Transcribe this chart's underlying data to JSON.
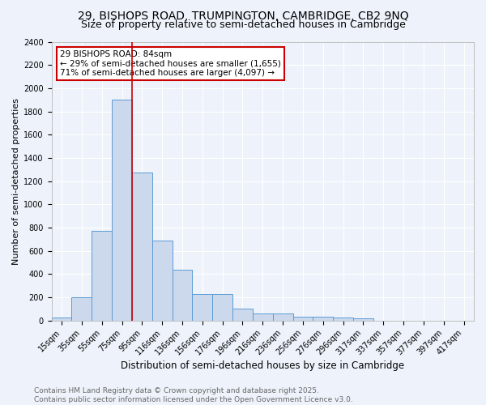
{
  "title1": "29, BISHOPS ROAD, TRUMPINGTON, CAMBRIDGE, CB2 9NQ",
  "title2": "Size of property relative to semi-detached houses in Cambridge",
  "xlabel": "Distribution of semi-detached houses by size in Cambridge",
  "ylabel": "Number of semi-detached properties",
  "bar_labels": [
    "15sqm",
    "35sqm",
    "55sqm",
    "75sqm",
    "95sqm",
    "116sqm",
    "136sqm",
    "156sqm",
    "176sqm",
    "196sqm",
    "216sqm",
    "236sqm",
    "256sqm",
    "276sqm",
    "296sqm",
    "317sqm",
    "337sqm",
    "357sqm",
    "377sqm",
    "397sqm",
    "417sqm"
  ],
  "bar_values": [
    25,
    200,
    770,
    1900,
    1275,
    690,
    435,
    230,
    230,
    105,
    60,
    60,
    35,
    30,
    25,
    20,
    0,
    0,
    0,
    0,
    0
  ],
  "bar_color": "#ccd9ed",
  "bar_edge_color": "#5b9bd5",
  "vline_color": "#cc0000",
  "annotation_title": "29 BISHOPS ROAD: 84sqm",
  "annotation_line1": "← 29% of semi-detached houses are smaller (1,655)",
  "annotation_line2": "71% of semi-detached houses are larger (4,097) →",
  "annotation_box_color": "#ffffff",
  "annotation_box_edge": "#cc0000",
  "ylim": [
    0,
    2400
  ],
  "yticks": [
    0,
    200,
    400,
    600,
    800,
    1000,
    1200,
    1400,
    1600,
    1800,
    2000,
    2200,
    2400
  ],
  "footer1": "Contains HM Land Registry data © Crown copyright and database right 2025.",
  "footer2": "Contains public sector information licensed under the Open Government Licence v3.0.",
  "bg_color": "#eef3fb",
  "plot_bg_color": "#eef3fb",
  "grid_color": "#ffffff",
  "title1_fontsize": 10,
  "title2_fontsize": 9,
  "xlabel_fontsize": 8.5,
  "ylabel_fontsize": 8,
  "tick_fontsize": 7,
  "footer_fontsize": 6.5,
  "annotation_fontsize": 7.5
}
